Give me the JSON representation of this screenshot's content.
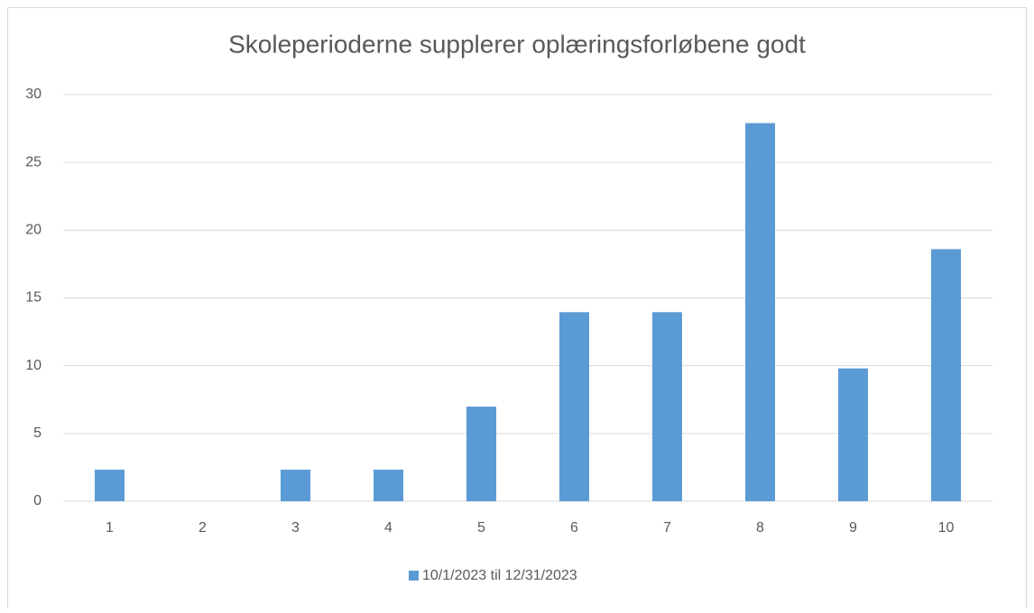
{
  "chart_data": {
    "type": "bar",
    "title": "Skoleperioderne supplerer oplæringsforløbene godt",
    "categories": [
      "1",
      "2",
      "3",
      "4",
      "5",
      "6",
      "7",
      "8",
      "9",
      "10"
    ],
    "series": [
      {
        "name": "10/1/2023 til 12/31/2023",
        "color": "#5b9bd5",
        "values": [
          2.33,
          0,
          2.33,
          2.33,
          6.98,
          13.95,
          13.95,
          27.9,
          9.8,
          18.6
        ]
      }
    ],
    "ylim": [
      0,
      30
    ],
    "yticks": [
      0,
      5,
      10,
      15,
      20,
      25,
      30
    ],
    "grid": true,
    "legend": "bottom"
  }
}
